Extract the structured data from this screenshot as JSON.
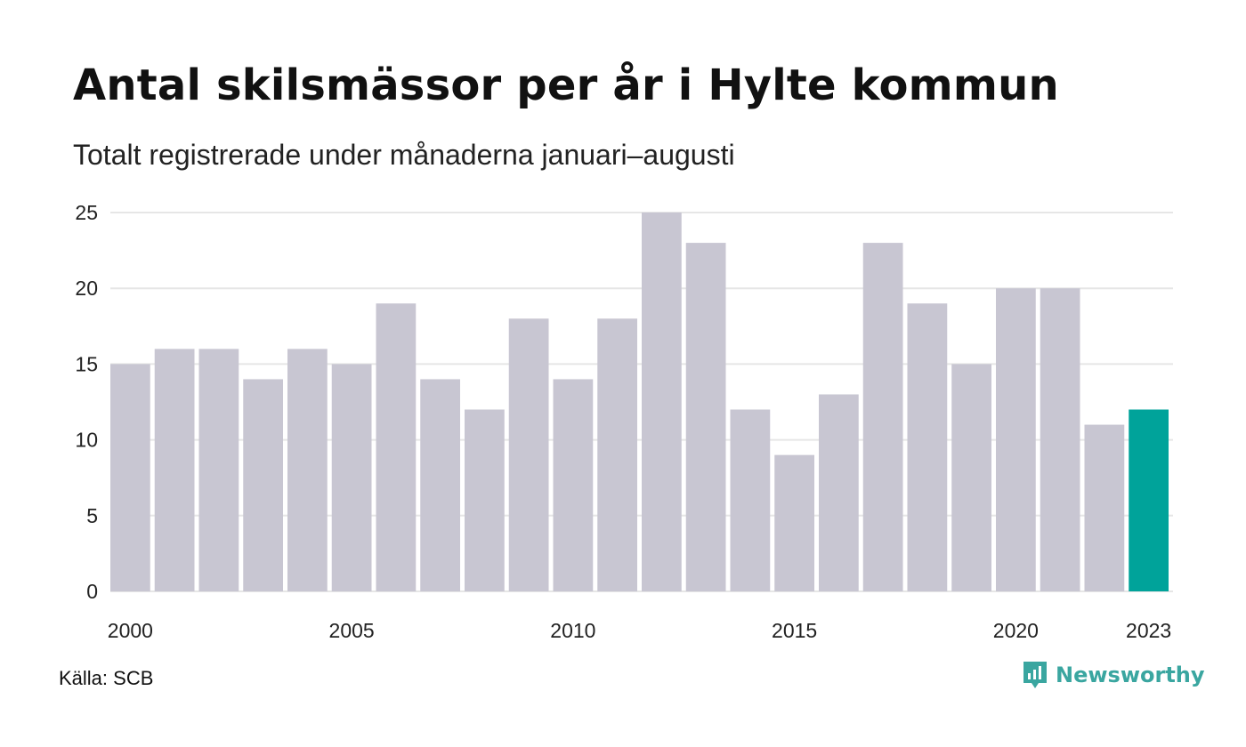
{
  "title": "Antal skilsmässor per år i Hylte kommun",
  "subtitle": "Totalt registrerade under månaderna januari–augusti",
  "source": "Källa: SCB",
  "brand": {
    "name": "Newsworthy",
    "icon": "newsworthy-logo-icon"
  },
  "colors": {
    "bar": "#c8c6d2",
    "highlight": "#00a39a",
    "grid": "#e6e6e6",
    "text": "#222222"
  },
  "chart_data": {
    "type": "bar",
    "categories": [
      "2000",
      "2001",
      "2002",
      "2003",
      "2004",
      "2005",
      "2006",
      "2007",
      "2008",
      "2009",
      "2010",
      "2011",
      "2012",
      "2013",
      "2014",
      "2015",
      "2016",
      "2017",
      "2018",
      "2019",
      "2020",
      "2021",
      "2022",
      "2023"
    ],
    "values": [
      15,
      16,
      16,
      14,
      16,
      15,
      19,
      14,
      12,
      18,
      14,
      18,
      25,
      23,
      12,
      9,
      13,
      23,
      19,
      15,
      20,
      20,
      11,
      12
    ],
    "highlight_category": "2023",
    "x_tick_labels": [
      "2000",
      "2005",
      "2010",
      "2015",
      "2020",
      "2023"
    ],
    "y_ticks": [
      0,
      5,
      10,
      15,
      20,
      25
    ],
    "ylim": [
      0,
      25
    ],
    "grid": true,
    "legend": "none"
  }
}
